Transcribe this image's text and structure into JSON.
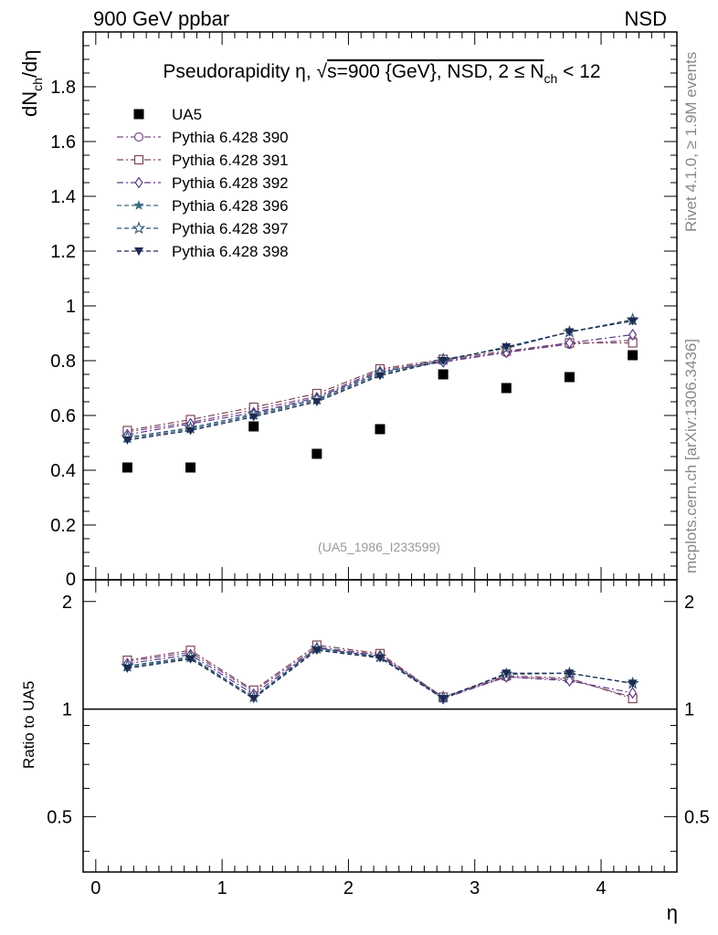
{
  "header": {
    "left": "900 GeV ppbar",
    "right": "NSD"
  },
  "side_text": {
    "rivet": "Rivet 4.1.0, ≥ 1.9M events",
    "mcplots": "mcplots.cern.ch [arXiv:1306.3436]"
  },
  "watermark": "(UA5_1986_I233599)",
  "chart_data": [
    {
      "type": "scatter",
      "panel": "main",
      "title": "Pseudorapidity η, √s=900 {GeV}, NSD, 2 ≤ N_ch < 12",
      "title_parts": {
        "prefix": "Pseudorapidity η, ",
        "sqrt": "√",
        "s_part": "s=900 {GeV}, NSD, 2 ≤ N",
        "sub": "ch",
        "suffix": " < 12"
      },
      "xlabel": "η",
      "ylabel": "dN_ch/dη",
      "ylabel_parts": {
        "a": "dN",
        "sub": "ch",
        "b": "/dη"
      },
      "xlim": [
        -0.1,
        4.6
      ],
      "ylim": [
        0,
        2.0
      ],
      "yticks": [
        0.2,
        0.4,
        0.6,
        0.8,
        1,
        1.2,
        1.4,
        1.6,
        1.8
      ],
      "ytick_labels": [
        "0.2",
        "0.4",
        "0.6",
        "0.8",
        "1",
        "1.2",
        "1.4",
        "1.6",
        "1.8"
      ],
      "ytick_zero_label": "0",
      "legend_position": "top-left",
      "x": [
        0.25,
        0.75,
        1.25,
        1.75,
        2.25,
        2.75,
        3.25,
        3.75,
        4.25
      ],
      "series": [
        {
          "name": "UA5",
          "legend": "UA5",
          "marker": "square-filled",
          "color": "#000000",
          "line": "none",
          "values": [
            0.41,
            0.41,
            0.56,
            0.46,
            0.55,
            0.75,
            0.7,
            0.74,
            0.82
          ]
        },
        {
          "name": "Pythia 6.428 390",
          "legend": "Pythia 6.428 390",
          "marker": "circle-open",
          "color": "#7a4d82",
          "line": "dashdot",
          "values": [
            0.54,
            0.575,
            0.62,
            0.67,
            0.765,
            0.8,
            0.83,
            0.86,
            0.875
          ]
        },
        {
          "name": "Pythia 6.428 391",
          "legend": "Pythia 6.428 391",
          "marker": "square-open",
          "color": "#7d4658",
          "line": "dashdot",
          "values": [
            0.545,
            0.585,
            0.63,
            0.68,
            0.77,
            0.805,
            0.835,
            0.865,
            0.865
          ]
        },
        {
          "name": "Pythia 6.428 392",
          "legend": "Pythia 6.428 392",
          "marker": "diamond-open",
          "color": "#5e3a8c",
          "line": "dashdot",
          "values": [
            0.53,
            0.57,
            0.61,
            0.665,
            0.76,
            0.795,
            0.83,
            0.865,
            0.895
          ]
        },
        {
          "name": "Pythia 6.428 396",
          "legend": "Pythia 6.428 396",
          "marker": "star-filled",
          "color": "#3e6a82",
          "line": "dashed",
          "values": [
            0.515,
            0.55,
            0.6,
            0.655,
            0.75,
            0.8,
            0.85,
            0.905,
            0.945
          ]
        },
        {
          "name": "Pythia 6.428 397",
          "legend": "Pythia 6.428 397",
          "marker": "star-open",
          "color": "#2e5670",
          "line": "dashed",
          "values": [
            0.52,
            0.555,
            0.605,
            0.66,
            0.755,
            0.805,
            0.845,
            0.905,
            0.95
          ]
        },
        {
          "name": "Pythia 6.428 398",
          "legend": "Pythia 6.428 398",
          "marker": "triangle-down-filled",
          "color": "#1e2a52",
          "line": "dashed",
          "values": [
            0.51,
            0.545,
            0.595,
            0.65,
            0.745,
            0.8,
            0.85,
            0.905,
            0.945
          ]
        }
      ]
    },
    {
      "type": "line",
      "panel": "ratio",
      "ylabel": "Ratio to UA5",
      "ylim": [
        0.35,
        2.3
      ],
      "reference_line": 1,
      "yticks": [
        0.5,
        1,
        2
      ],
      "ytick_labels": [
        "0.5",
        "1",
        "2"
      ],
      "xticks": [
        0,
        1,
        2,
        3,
        4
      ],
      "xtick_labels": [
        "0",
        "1",
        "2",
        "3",
        "4"
      ],
      "x": [
        0.25,
        0.75,
        1.25,
        1.75,
        2.25,
        2.75,
        3.25,
        3.75,
        4.25
      ],
      "series": [
        {
          "name": "Pythia 6.428 390",
          "values": [
            1.36,
            1.44,
            1.12,
            1.49,
            1.42,
            1.08,
            1.23,
            1.21,
            1.08
          ]
        },
        {
          "name": "Pythia 6.428 391",
          "values": [
            1.37,
            1.46,
            1.13,
            1.51,
            1.43,
            1.08,
            1.24,
            1.22,
            1.07
          ]
        },
        {
          "name": "Pythia 6.428 392",
          "values": [
            1.34,
            1.42,
            1.1,
            1.48,
            1.41,
            1.07,
            1.23,
            1.2,
            1.11
          ]
        },
        {
          "name": "Pythia 6.428 396",
          "values": [
            1.31,
            1.39,
            1.08,
            1.47,
            1.4,
            1.07,
            1.26,
            1.26,
            1.18
          ]
        },
        {
          "name": "Pythia 6.428 397",
          "values": [
            1.32,
            1.4,
            1.08,
            1.48,
            1.4,
            1.08,
            1.25,
            1.26,
            1.18
          ]
        },
        {
          "name": "Pythia 6.428 398",
          "values": [
            1.3,
            1.38,
            1.07,
            1.46,
            1.39,
            1.07,
            1.26,
            1.26,
            1.18
          ]
        }
      ]
    }
  ]
}
